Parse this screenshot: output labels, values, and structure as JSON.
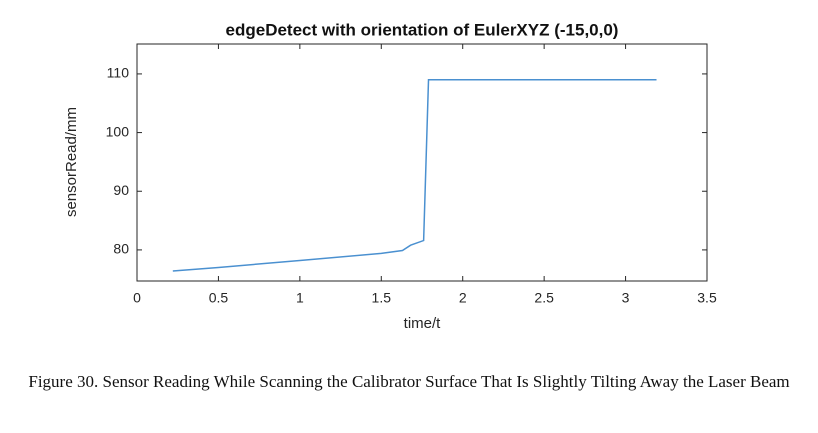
{
  "chart_data": {
    "type": "line",
    "title": "edgeDetect with orientation of EulerXYZ (-15,0,0)",
    "x_label": "time/t",
    "y_label": "sensorRead/mm",
    "x": [
      0.22,
      0.5,
      1.0,
      1.5,
      1.63,
      1.68,
      1.76,
      1.79,
      3.19
    ],
    "series": [
      {
        "color": "#4a90d0",
        "values": [
          76.4,
          77.0,
          78.2,
          79.4,
          79.9,
          80.8,
          81.6,
          109,
          109
        ]
      }
    ],
    "xlim": [
      0,
      3.5
    ],
    "xticks": [
      0,
      0.5,
      1,
      1.5,
      2,
      2.5,
      3,
      3.5
    ],
    "ylim": [
      74.7,
      115.1
    ],
    "yticks": [
      80,
      90,
      100,
      110
    ],
    "grid": false
  },
  "caption": "Figure 30. Sensor Reading While Scanning the Calibrator Surface That Is Slightly Tilting Away the Laser Beam"
}
